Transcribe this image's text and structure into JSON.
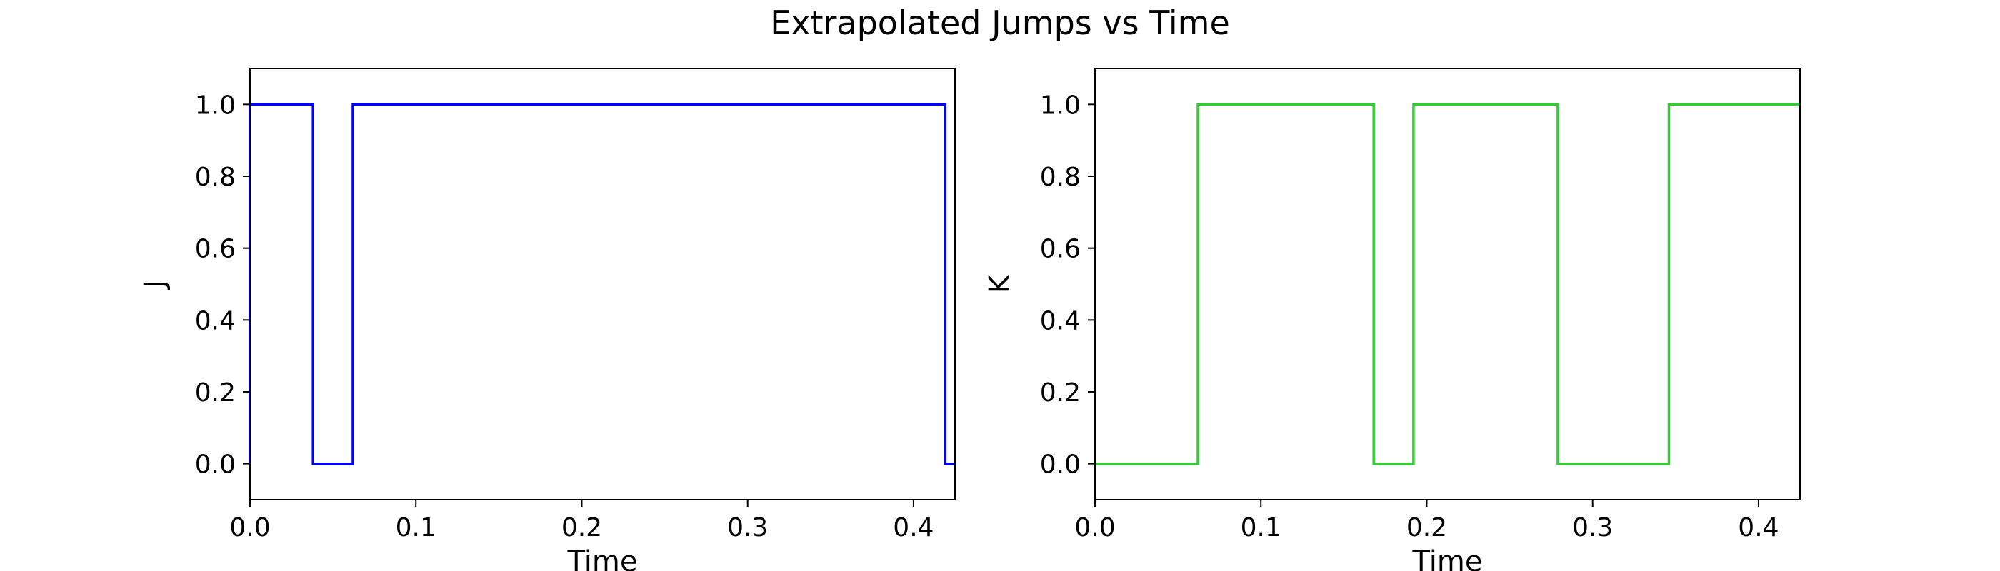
{
  "figure": {
    "title": "Extrapolated Jumps vs Time"
  },
  "chart_data": [
    {
      "type": "line",
      "drawstyle": "steps-post",
      "title": "",
      "xlabel": "Time",
      "ylabel": "J",
      "xlim": [
        0.0,
        0.425
      ],
      "ylim": [
        -0.1,
        1.1
      ],
      "xticks": [
        0.0,
        0.1,
        0.2,
        0.3,
        0.4
      ],
      "xtick_labels": [
        "0.0",
        "0.1",
        "0.2",
        "0.3",
        "0.4"
      ],
      "yticks": [
        0.0,
        0.2,
        0.4,
        0.6,
        0.8,
        1.0
      ],
      "ytick_labels": [
        "0.0",
        "0.2",
        "0.4",
        "0.6",
        "0.8",
        "1.0"
      ],
      "grid": false,
      "color": "#0000ff",
      "series": [
        {
          "x": [
            0.0,
            0.0,
            0.038,
            0.062,
            0.419,
            0.425
          ],
          "y": [
            0.0,
            1.0,
            0.0,
            1.0,
            0.0,
            0.0
          ]
        }
      ]
    },
    {
      "type": "line",
      "drawstyle": "steps-post",
      "title": "",
      "xlabel": "Time",
      "ylabel": "K",
      "xlim": [
        0.0,
        0.425
      ],
      "ylim": [
        -0.1,
        1.1
      ],
      "xticks": [
        0.0,
        0.1,
        0.2,
        0.3,
        0.4
      ],
      "xtick_labels": [
        "0.0",
        "0.1",
        "0.2",
        "0.3",
        "0.4"
      ],
      "yticks": [
        0.0,
        0.2,
        0.4,
        0.6,
        0.8,
        1.0
      ],
      "ytick_labels": [
        "0.0",
        "0.2",
        "0.4",
        "0.6",
        "0.8",
        "1.0"
      ],
      "grid": false,
      "color": "#32cd32",
      "series": [
        {
          "x": [
            0.0,
            0.062,
            0.168,
            0.192,
            0.279,
            0.346,
            0.425
          ],
          "y": [
            0.0,
            1.0,
            0.0,
            1.0,
            0.0,
            1.0,
            1.0
          ]
        }
      ]
    }
  ]
}
